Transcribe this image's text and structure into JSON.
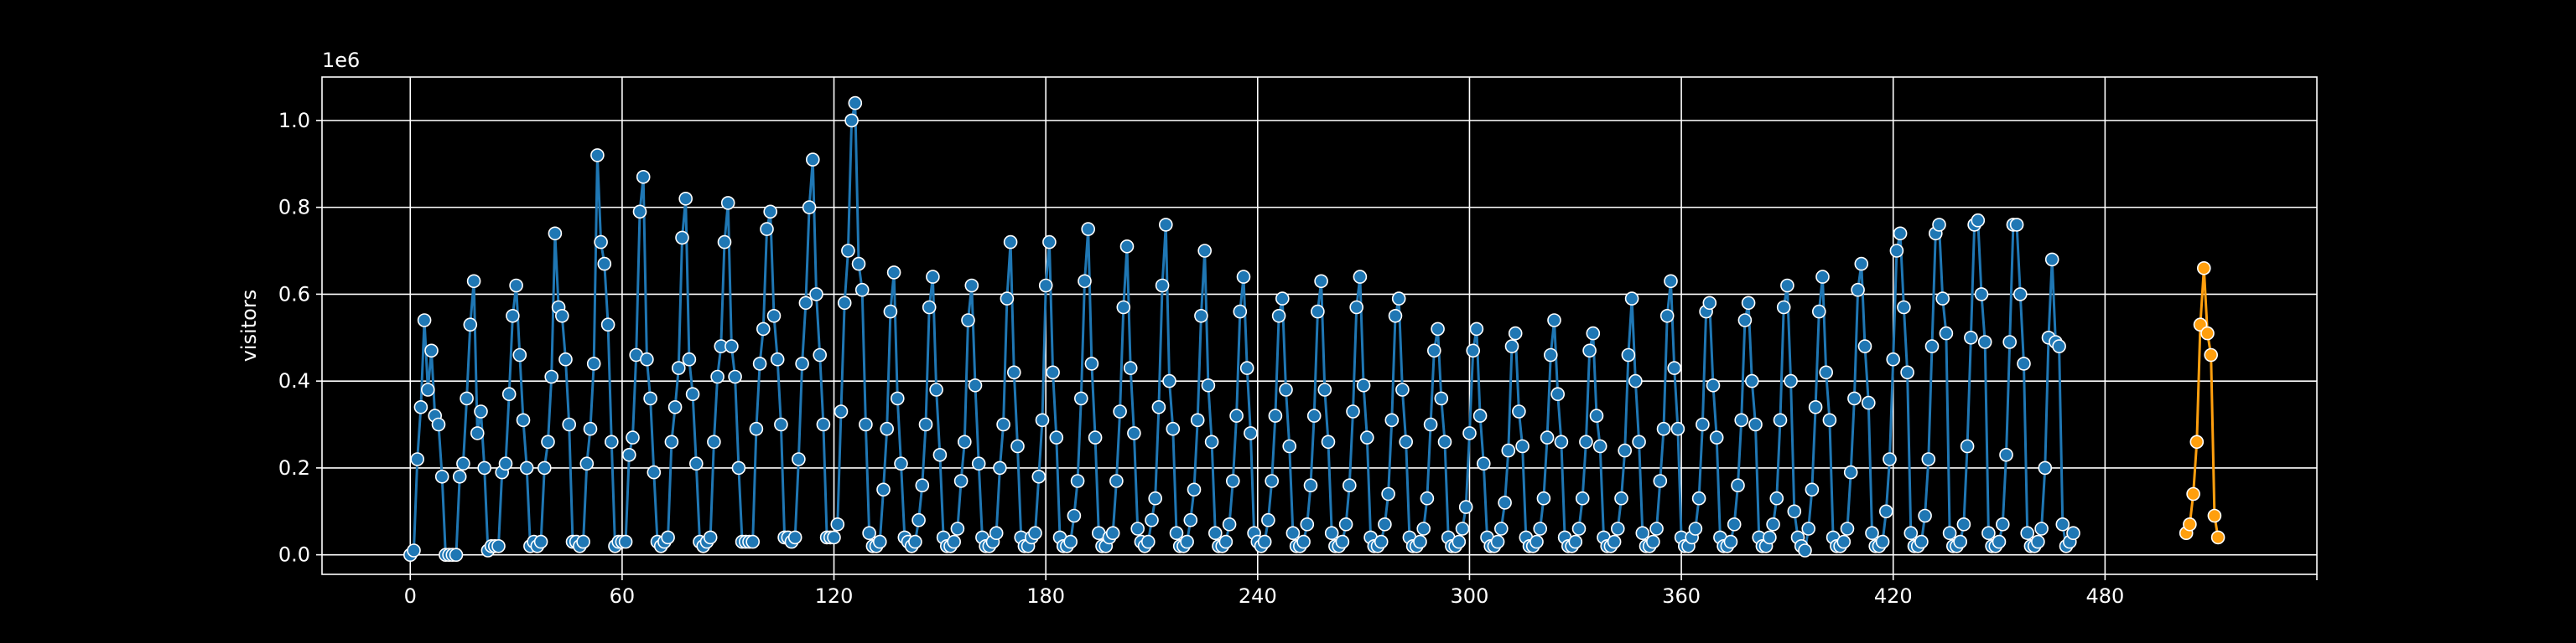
{
  "chart_data": {
    "type": "line",
    "title": "",
    "xlabel": "",
    "ylabel": "visitors",
    "y_offset_label": "1e6",
    "xlim": [
      -25,
      540
    ],
    "ylim": [
      -0.045,
      1.1
    ],
    "x_ticks": [
      0,
      60,
      120,
      180,
      240,
      300,
      360,
      420,
      480
    ],
    "x_tick_labels": [
      "0",
      "60",
      "120",
      "180",
      "240",
      "300",
      "360",
      "420",
      "480"
    ],
    "y_ticks": [
      0.0,
      0.2,
      0.4,
      0.6,
      0.8,
      1.0
    ],
    "y_tick_labels": [
      "0.0",
      "0.2",
      "0.4",
      "0.6",
      "0.8",
      "1.0"
    ],
    "grid": true,
    "legend": "none",
    "series": [
      {
        "color": "#1f77b4",
        "marker_color": "#1f77b4",
        "marker_edge": "#ffffff",
        "x_start": 0,
        "x_step": 1,
        "values": [
          0.0,
          0.01,
          0.22,
          0.34,
          0.54,
          0.38,
          0.47,
          0.32,
          0.3,
          0.18,
          0.0,
          0.0,
          0.0,
          0.0,
          0.18,
          0.21,
          0.36,
          0.53,
          0.63,
          0.28,
          0.33,
          0.2,
          0.01,
          0.02,
          0.02,
          0.02,
          0.19,
          0.21,
          0.37,
          0.55,
          0.62,
          0.46,
          0.31,
          0.2,
          0.02,
          0.03,
          0.02,
          0.03,
          0.2,
          0.26,
          0.41,
          0.74,
          0.57,
          0.55,
          0.45,
          0.3,
          0.03,
          0.03,
          0.02,
          0.03,
          0.21,
          0.29,
          0.44,
          0.92,
          0.72,
          0.67,
          0.53,
          0.26,
          0.02,
          0.03,
          0.03,
          0.03,
          0.23,
          0.27,
          0.46,
          0.79,
          0.87,
          0.45,
          0.36,
          0.19,
          0.03,
          0.02,
          0.03,
          0.04,
          0.26,
          0.34,
          0.43,
          0.73,
          0.82,
          0.45,
          0.37,
          0.21,
          0.03,
          0.02,
          0.03,
          0.04,
          0.26,
          0.41,
          0.48,
          0.72,
          0.81,
          0.48,
          0.41,
          0.2,
          0.03,
          0.03,
          0.03,
          0.03,
          0.29,
          0.44,
          0.52,
          0.75,
          0.79,
          0.55,
          0.45,
          0.3,
          0.04,
          0.04,
          0.03,
          0.04,
          0.22,
          0.44,
          0.58,
          0.8,
          0.91,
          0.6,
          0.46,
          0.3,
          0.04,
          0.04,
          0.04,
          0.07,
          0.33,
          0.58,
          0.7,
          1.0,
          1.04,
          0.67,
          0.61,
          0.3,
          0.05,
          0.02,
          0.02,
          0.03,
          0.15,
          0.29,
          0.56,
          0.65,
          0.36,
          0.21,
          0.04,
          0.03,
          0.02,
          0.03,
          0.08,
          0.16,
          0.3,
          0.57,
          0.64,
          0.38,
          0.23,
          0.04,
          0.02,
          0.02,
          0.03,
          0.06,
          0.17,
          0.26,
          0.54,
          0.62,
          0.39,
          0.21,
          0.04,
          0.02,
          0.02,
          0.03,
          0.05,
          0.2,
          0.3,
          0.59,
          0.72,
          0.42,
          0.25,
          0.04,
          0.02,
          0.02,
          0.04,
          0.05,
          0.18,
          0.31,
          0.62,
          0.72,
          0.42,
          0.27,
          0.04,
          0.02,
          0.02,
          0.03,
          0.09,
          0.17,
          0.36,
          0.63,
          0.75,
          0.44,
          0.27,
          0.05,
          0.02,
          0.02,
          0.04,
          0.05,
          0.17,
          0.33,
          0.57,
          0.71,
          0.43,
          0.28,
          0.06,
          0.03,
          0.02,
          0.03,
          0.08,
          0.13,
          0.34,
          0.62,
          0.76,
          0.4,
          0.29,
          0.05,
          0.02,
          0.02,
          0.03,
          0.08,
          0.15,
          0.31,
          0.55,
          0.7,
          0.39,
          0.26,
          0.05,
          0.02,
          0.02,
          0.03,
          0.07,
          0.17,
          0.32,
          0.56,
          0.64,
          0.43,
          0.28,
          0.05,
          0.03,
          0.02,
          0.03,
          0.08,
          0.17,
          0.32,
          0.55,
          0.59,
          0.38,
          0.25,
          0.05,
          0.02,
          0.02,
          0.03,
          0.07,
          0.16,
          0.32,
          0.56,
          0.63,
          0.38,
          0.26,
          0.05,
          0.02,
          0.02,
          0.03,
          0.07,
          0.16,
          0.33,
          0.57,
          0.64,
          0.39,
          0.27,
          0.04,
          0.02,
          0.02,
          0.03,
          0.07,
          0.14,
          0.31,
          0.55,
          0.59,
          0.38,
          0.26,
          0.04,
          0.02,
          0.02,
          0.03,
          0.06,
          0.13,
          0.3,
          0.47,
          0.52,
          0.36,
          0.26,
          0.04,
          0.02,
          0.02,
          0.03,
          0.06,
          0.11,
          0.28,
          0.47,
          0.52,
          0.32,
          0.21,
          0.04,
          0.02,
          0.02,
          0.03,
          0.06,
          0.12,
          0.24,
          0.48,
          0.51,
          0.33,
          0.25,
          0.04,
          0.02,
          0.02,
          0.03,
          0.06,
          0.13,
          0.27,
          0.46,
          0.54,
          0.37,
          0.26,
          0.04,
          0.02,
          0.02,
          0.03,
          0.06,
          0.13,
          0.26,
          0.47,
          0.51,
          0.32,
          0.25,
          0.04,
          0.02,
          0.02,
          0.03,
          0.06,
          0.13,
          0.24,
          0.46,
          0.59,
          0.4,
          0.26,
          0.05,
          0.02,
          0.02,
          0.03,
          0.06,
          0.17,
          0.29,
          0.55,
          0.63,
          0.43,
          0.29,
          0.04,
          0.02,
          0.02,
          0.04,
          0.06,
          0.13,
          0.3,
          0.56,
          0.58,
          0.39,
          0.27,
          0.04,
          0.02,
          0.02,
          0.03,
          0.07,
          0.16,
          0.31,
          0.54,
          0.58,
          0.4,
          0.3,
          0.04,
          0.02,
          0.02,
          0.04,
          0.07,
          0.13,
          0.31,
          0.57,
          0.62,
          0.4,
          0.1,
          0.04,
          0.02,
          0.01,
          0.06,
          0.15,
          0.34,
          0.56,
          0.64,
          0.42,
          0.31,
          0.04,
          0.02,
          0.02,
          0.03,
          0.06,
          0.19,
          0.36,
          0.61,
          0.67,
          0.48,
          0.35,
          0.05,
          0.02,
          0.02,
          0.03,
          0.1,
          0.22,
          0.45,
          0.7,
          0.74,
          0.57,
          0.42,
          0.05,
          0.02,
          0.02,
          0.03,
          0.09,
          0.22,
          0.48,
          0.74,
          0.76,
          0.59,
          0.51,
          0.05,
          0.02,
          0.02,
          0.03,
          0.07,
          0.25,
          0.5,
          0.76,
          0.77,
          0.6,
          0.49,
          0.05,
          0.02,
          0.02,
          0.03,
          0.07,
          0.23,
          0.49,
          0.76,
          0.76,
          0.6,
          0.44,
          0.05,
          0.02,
          0.02,
          0.03,
          0.06,
          0.2,
          0.5,
          0.68,
          0.49,
          0.48,
          0.07,
          0.02,
          0.03,
          0.05
        ]
      },
      {
        "color": "#ff9f0e",
        "marker_color": "#ff9f0e",
        "marker_edge": "#ffffff",
        "x_start": 503,
        "x_step": 1,
        "values": [
          0.05,
          0.07,
          0.14,
          0.26,
          0.53,
          0.66,
          0.51,
          0.46,
          0.09,
          0.04
        ]
      }
    ]
  }
}
